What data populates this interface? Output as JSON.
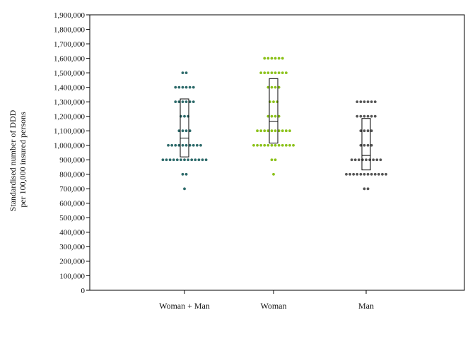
{
  "chart_data": {
    "type": "scatter",
    "subtype": "dot-plot-with-boxes",
    "title": "",
    "ylabel_lines": [
      "Standardised number of DDD",
      "per 100,000 insured persons"
    ],
    "xlabel": "",
    "ylim": [
      0,
      1900000
    ],
    "y_ticks": [
      0,
      100000,
      200000,
      300000,
      400000,
      500000,
      600000,
      700000,
      800000,
      900000,
      1000000,
      1100000,
      1200000,
      1300000,
      1400000,
      1500000,
      1600000,
      1700000,
      1800000,
      1900000
    ],
    "y_tick_labels": [
      "0",
      "100,000",
      "200,000",
      "300,000",
      "400,000",
      "500,000",
      "600,000",
      "700,000",
      "800,000",
      "900,000",
      "1,000,000",
      "1,100,000",
      "1,200,000",
      "1,300,000",
      "1,400,000",
      "1,500,000",
      "1,600,000",
      "1,700,000",
      "1,800,000",
      "1,900,000"
    ],
    "grid": false,
    "legend": "none",
    "categories": [
      "Woman + Man",
      "Woman",
      "Man"
    ],
    "series": [
      {
        "color": "#2e6b6b",
        "bins": [
          {
            "y": 1500000,
            "count": 2
          },
          {
            "y": 1400000,
            "count": 6
          },
          {
            "y": 1300000,
            "count": 6
          },
          {
            "y": 1200000,
            "count": 3
          },
          {
            "y": 1100000,
            "count": 4
          },
          {
            "y": 1000000,
            "count": 10
          },
          {
            "y": 900000,
            "count": 13
          },
          {
            "y": 800000,
            "count": 2
          },
          {
            "y": 700000,
            "count": 1
          }
        ],
        "box": {
          "q1": 920000,
          "median": 1050000,
          "q3": 1320000
        }
      },
      {
        "color": "#8cc21c",
        "bins": [
          {
            "y": 1600000,
            "count": 6
          },
          {
            "y": 1500000,
            "count": 8
          },
          {
            "y": 1400000,
            "count": 4
          },
          {
            "y": 1300000,
            "count": 3
          },
          {
            "y": 1200000,
            "count": 4
          },
          {
            "y": 1100000,
            "count": 10
          },
          {
            "y": 1000000,
            "count": 12
          },
          {
            "y": 900000,
            "count": 2
          },
          {
            "y": 800000,
            "count": 1
          }
        ],
        "box": {
          "q1": 1015000,
          "median": 1165000,
          "q3": 1460000
        }
      },
      {
        "color": "#555555",
        "bins": [
          {
            "y": 1300000,
            "count": 6
          },
          {
            "y": 1200000,
            "count": 6
          },
          {
            "y": 1100000,
            "count": 4
          },
          {
            "y": 1000000,
            "count": 4
          },
          {
            "y": 900000,
            "count": 9
          },
          {
            "y": 800000,
            "count": 12
          },
          {
            "y": 700000,
            "count": 2
          }
        ],
        "box": {
          "q1": 830000,
          "median": 930000,
          "q3": 1185000
        }
      }
    ]
  }
}
